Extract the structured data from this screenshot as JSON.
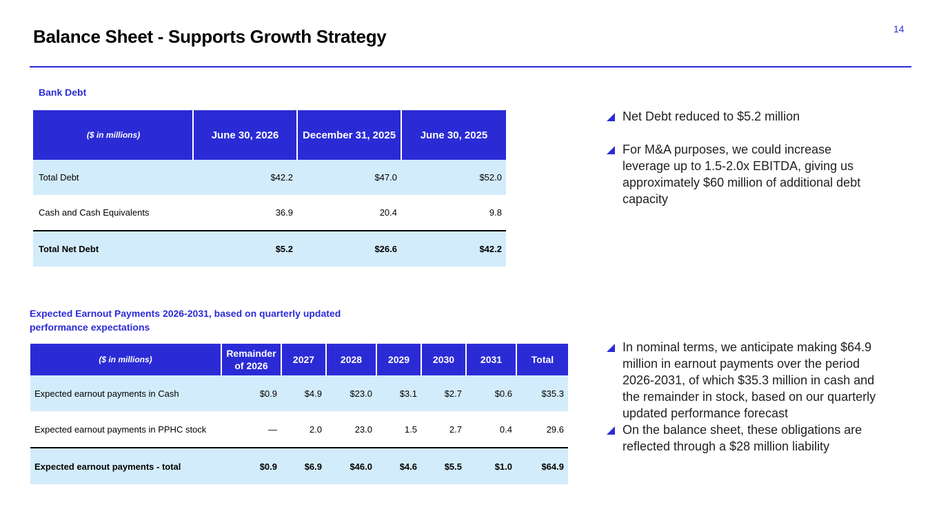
{
  "title": "Balance Sheet - Supports Growth Strategy",
  "page_number": "14",
  "colors": {
    "accent": "#2b2bd6",
    "row_shade": "#d3ecfb"
  },
  "bank_debt": {
    "label": "Bank Debt",
    "headers": [
      "($ in millions)",
      "June 30, 2026",
      "December 31, 2025",
      "June 30, 2025"
    ],
    "rows": [
      [
        "Total Debt",
        "$42.2",
        "$47.0",
        "$52.0"
      ],
      [
        "Cash and Cash Equivalents",
        "36.9",
        "20.4",
        "9.8"
      ],
      [
        "Total Net Debt",
        "$5.2",
        "$26.6",
        "$42.2"
      ]
    ]
  },
  "earnout": {
    "label": "Expected Earnout Payments 2026-2031, based on quarterly updated performance expectations",
    "headers": [
      "($ in millions)",
      "Remainder of 2026",
      "2027",
      "2028",
      "2029",
      "2030",
      "2031",
      "Total"
    ],
    "rows": [
      [
        "Expected earnout payments in Cash",
        "$0.9",
        "$4.9",
        "$23.0",
        "$3.1",
        "$2.7",
        "$0.6",
        "$35.3"
      ],
      [
        "Expected earnout payments in PPHC stock",
        "—",
        "2.0",
        "23.0",
        "1.5",
        "2.7",
        "0.4",
        "29.6"
      ],
      [
        "Expected earnout payments - total",
        "$0.9",
        "$6.9",
        "$46.0",
        "$4.6",
        "$5.5",
        "$1.0",
        "$64.9"
      ]
    ]
  },
  "bullets_top": [
    "Net Debt reduced to $5.2 million",
    "For M&A purposes, we could increase leverage up to 1.5-2.0x EBITDA, giving us approximately $60 million of additional debt capacity"
  ],
  "bullets_bottom": [
    "In nominal terms, we anticipate making $64.9 million in earnout payments over the period 2026-2031, of which $35.3 million in cash and the remainder in stock, based on our quarterly updated performance forecast",
    "On the balance sheet, these obligations are reflected through a $28 million liability"
  ]
}
